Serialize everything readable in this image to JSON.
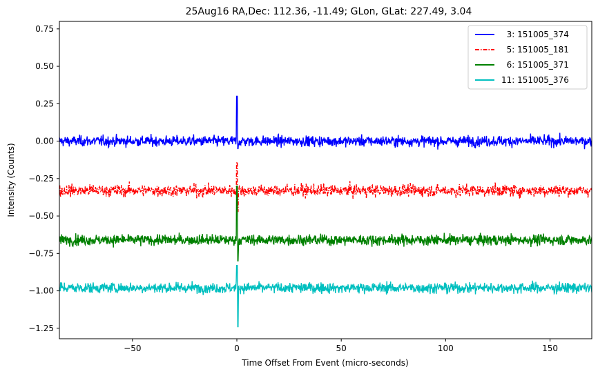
{
  "chart_data": {
    "type": "line",
    "title": "25Aug16 RA,Dec:  112.36, -11.49; GLon, GLat:  227.49,   3.04",
    "xlabel": "Time Offset From Event (micro-seconds)",
    "ylabel": "Intensity (Counts)",
    "xlim": [
      -85,
      170
    ],
    "ylim": [
      -1.32,
      0.8
    ],
    "xticks": [
      -50,
      0,
      50,
      100,
      150
    ],
    "xtick_labels": [
      "−50",
      "0",
      "50",
      "100",
      "150"
    ],
    "yticks": [
      0.75,
      0.5,
      0.25,
      0.0,
      -0.25,
      -0.5,
      -0.75,
      -1.0,
      -1.25
    ],
    "ytick_labels": [
      "0.75",
      "0.50",
      "0.25",
      "0.00",
      "−0.25",
      "−0.50",
      "−0.75",
      "−1.00",
      "−1.25"
    ],
    "legend_position": "top-right",
    "series": [
      {
        "name": "  3: 151005_374",
        "color": "#0000ff",
        "style": "solid",
        "baseline": 0.0,
        "noise_std": 0.025,
        "spike_peak": 0.3,
        "spike_min": -0.05
      },
      {
        "name": "  5: 151005_181",
        "color": "#ff0000",
        "style": "dashdot",
        "baseline": -0.33,
        "noise_std": 0.028,
        "spike_peak": -0.14,
        "spike_min": -0.47
      },
      {
        "name": "  6: 151005_371",
        "color": "#008000",
        "style": "solid",
        "baseline": -0.66,
        "noise_std": 0.025,
        "spike_peak": -0.3,
        "spike_min": -0.8
      },
      {
        "name": "11: 151005_376",
        "color": "#00bfbf",
        "style": "solid",
        "baseline": -0.98,
        "noise_std": 0.025,
        "spike_peak": -0.83,
        "spike_min": -1.24
      }
    ]
  }
}
